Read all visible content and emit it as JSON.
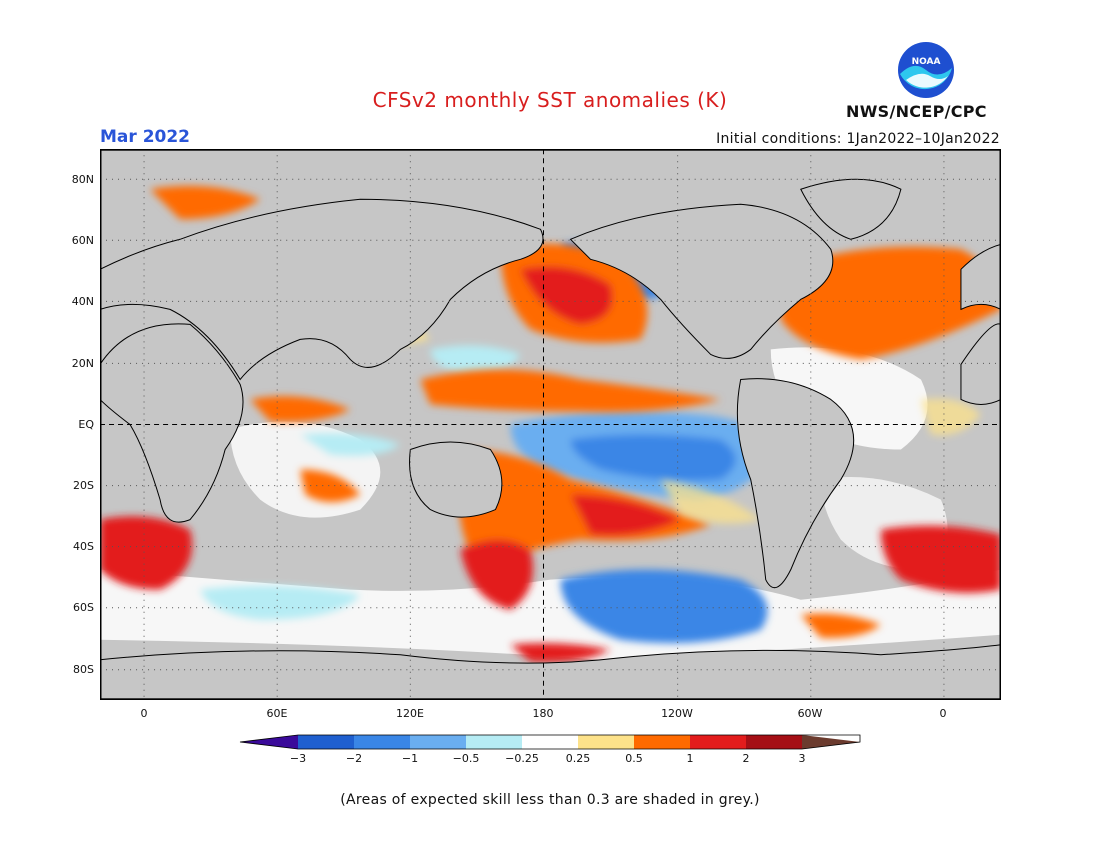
{
  "title": "CFSv2 monthly SST anomalies (K)",
  "month": "Mar 2022",
  "initial_conditions": "Initial conditions: 1Jan2022–10Jan2022",
  "agency": "NWS/NCEP/CPC",
  "logo_text": "NOAA",
  "footnote": "(Areas of expected skill less than 0.3 are shaded in grey.)",
  "lat_labels": [
    "80N",
    "60N",
    "40N",
    "20N",
    "EQ",
    "20S",
    "40S",
    "60S",
    "80S"
  ],
  "lon_labels": [
    "0",
    "60E",
    "120E",
    "180",
    "120W",
    "60W",
    "0"
  ],
  "colorbar": {
    "labels": [
      "−3",
      "−2",
      "−1",
      "−0.5",
      "−0.25",
      "0.25",
      "0.5",
      "1",
      "2",
      "3"
    ],
    "colors": [
      "#3a0a9a",
      "#1f5fcf",
      "#3a86e6",
      "#6aaef0",
      "#b6ecf4",
      "#ffffff",
      "#fde28a",
      "#ff6a00",
      "#e31c1c",
      "#a50f15",
      "#6b3b2e"
    ]
  },
  "colors": {
    "ocean_grey": "#c6c6c6",
    "title_red": "#d81e1e",
    "month_blue": "#2a55d8"
  }
}
